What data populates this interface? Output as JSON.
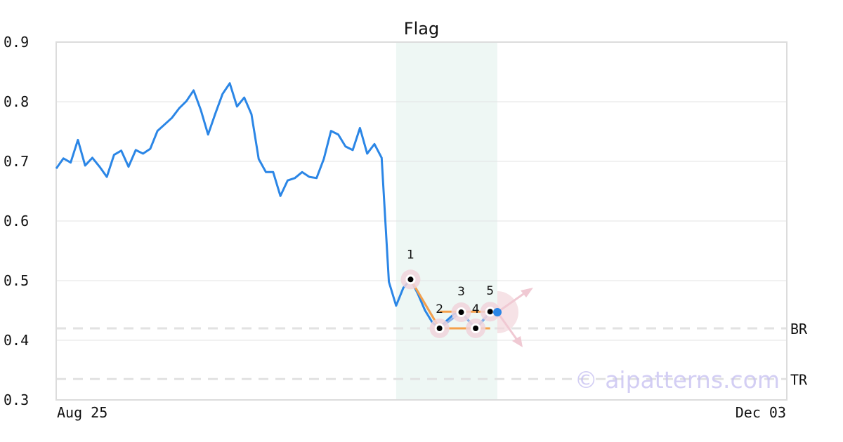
{
  "chart_data": {
    "type": "line",
    "title": "Flag",
    "xlabel": "",
    "ylabel": "",
    "ylim": [
      0.3,
      0.9
    ],
    "yticks": [
      "0.3",
      "0.4",
      "0.5",
      "0.6",
      "0.7",
      "0.8",
      "0.9"
    ],
    "xticks": [
      "Aug 25",
      "Dec 03"
    ],
    "grid": true,
    "line_color": "#2b86e6",
    "values": [
      0.688,
      0.705,
      0.698,
      0.736,
      0.693,
      0.706,
      0.691,
      0.674,
      0.711,
      0.718,
      0.691,
      0.719,
      0.713,
      0.721,
      0.751,
      0.762,
      0.773,
      0.789,
      0.801,
      0.819,
      0.786,
      0.745,
      0.78,
      0.813,
      0.831,
      0.792,
      0.807,
      0.779,
      0.704,
      0.682,
      0.682,
      0.642,
      0.668,
      0.672,
      0.682,
      0.674,
      0.672,
      0.704,
      0.751,
      0.745,
      0.725,
      0.719,
      0.756,
      0.713,
      0.729,
      0.706,
      0.498,
      0.458,
      0.488,
      0.502,
      0.478,
      0.45,
      0.43,
      0.42,
      0.433,
      0.444,
      0.447,
      0.433,
      0.42,
      0.433,
      0.448,
      0.447
    ],
    "highlight_range": [
      47,
      61
    ],
    "highlight_color": "#eef7f4",
    "pattern_points": [
      {
        "label": "1",
        "index": 49,
        "value": 0.502
      },
      {
        "label": "2",
        "index": 53,
        "value": 0.42
      },
      {
        "label": "3",
        "index": 56,
        "value": 0.447
      },
      {
        "label": "4",
        "index": 58,
        "value": 0.42
      },
      {
        "label": "5",
        "index": 60,
        "value": 0.448
      }
    ],
    "pattern_color": "#f5a04a",
    "levels": [
      {
        "name": "BR",
        "value": 0.42
      },
      {
        "name": "TR",
        "value": 0.335
      }
    ]
  },
  "watermark": "© aipatterns.com"
}
